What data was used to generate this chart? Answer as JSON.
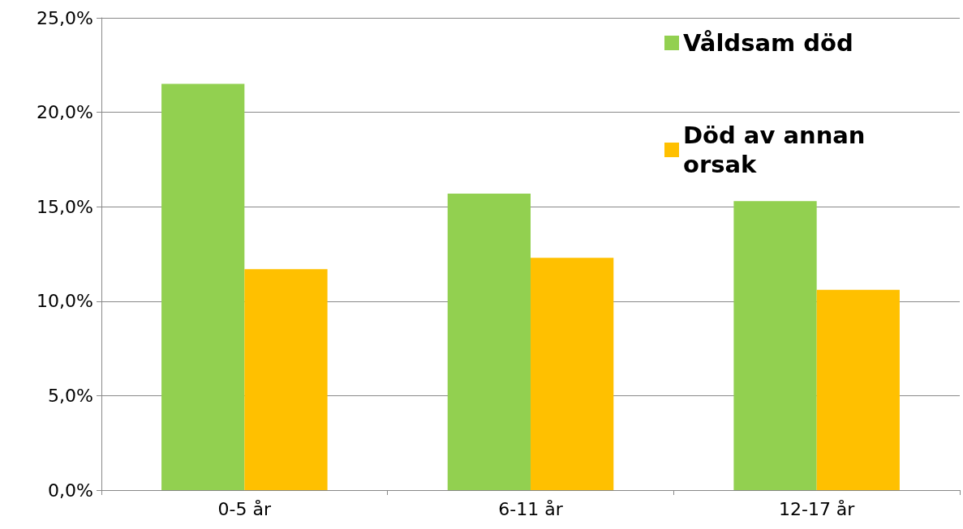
{
  "chart_data": {
    "type": "bar",
    "categories": [
      "0-5 år",
      "6-11 år",
      "12-17 år"
    ],
    "series": [
      {
        "name": "Våldsam död",
        "color": "#92d050",
        "values": [
          21.5,
          15.7,
          15.3
        ]
      },
      {
        "name": "Död av annan orsak",
        "color": "#ffc000",
        "values": [
          11.7,
          12.3,
          10.6
        ]
      }
    ],
    "ylim": [
      0,
      25
    ],
    "yticks": [
      {
        "value": 0,
        "label": "0,0%"
      },
      {
        "value": 5,
        "label": "5,0%"
      },
      {
        "value": 10,
        "label": "10,0%"
      },
      {
        "value": 15,
        "label": "15,0%"
      },
      {
        "value": 20,
        "label": "20,0%"
      },
      {
        "value": 25,
        "label": "25,0%"
      }
    ],
    "grid": "y",
    "legend": "top right"
  }
}
